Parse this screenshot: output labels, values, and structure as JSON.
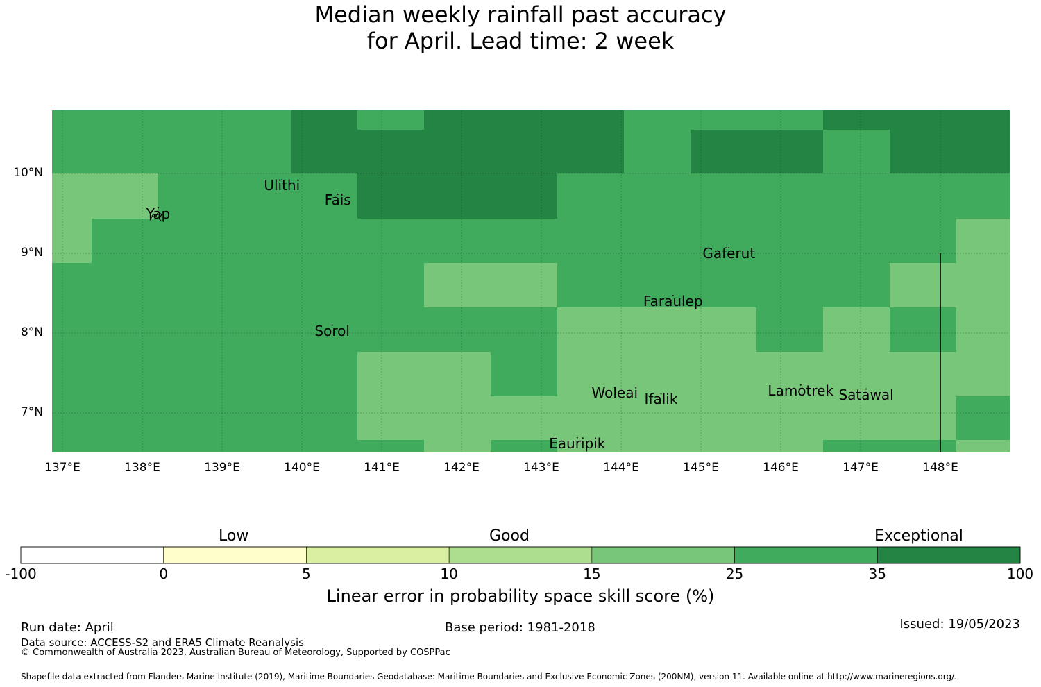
{
  "title": {
    "line1": "Median weekly rainfall past accuracy",
    "line2": "for April. Lead time: 2 week"
  },
  "map": {
    "lon_range": [
      137,
      149
    ],
    "lat_range": [
      6.5,
      10.8
    ],
    "lon_ticks": [
      137,
      138,
      139,
      140,
      141,
      142,
      143,
      144,
      145,
      146,
      147,
      148
    ],
    "lon_tick_labels": [
      "137°E",
      "138°E",
      "139°E",
      "140°E",
      "141°E",
      "142°E",
      "143°E",
      "144°E",
      "145°E",
      "146°E",
      "147°E",
      "148°E"
    ],
    "lat_ticks": [
      10,
      9,
      8,
      7
    ],
    "lat_tick_labels": [
      "10°N",
      "9°N",
      "8°N",
      "7°N"
    ],
    "grid": true,
    "place_labels": [
      {
        "name": "Ulithi",
        "lon": 139.75,
        "lat": 9.85
      },
      {
        "name": "Fais",
        "lon": 140.45,
        "lat": 9.67
      },
      {
        "name": "Yap",
        "lon": 138.2,
        "lat": 9.5
      },
      {
        "name": "Gaferut",
        "lon": 145.35,
        "lat": 9.0
      },
      {
        "name": "Faraulep",
        "lon": 144.65,
        "lat": 8.4
      },
      {
        "name": "Sorol",
        "lon": 140.38,
        "lat": 8.03
      },
      {
        "name": "Woleai",
        "lon": 143.92,
        "lat": 7.25
      },
      {
        "name": "Ifalik",
        "lon": 144.5,
        "lat": 7.17
      },
      {
        "name": "Lamotrek",
        "lon": 146.25,
        "lat": 7.28
      },
      {
        "name": "Satawal",
        "lon": 147.07,
        "lat": 7.23
      },
      {
        "name": "Eauripik",
        "lon": 143.45,
        "lat": 6.62
      }
    ],
    "boundary_line": {
      "lon": 148.0,
      "lat_from": 6.5,
      "lat_to": 9.0
    }
  },
  "legend": {
    "category_labels": [
      "Low",
      "Good",
      "Exceptional"
    ],
    "boundaries": [
      "-100",
      "0",
      "5",
      "10",
      "15",
      "25",
      "35",
      "100"
    ],
    "colors": [
      "#ffffff",
      "#ffffcc",
      "#d9f0a3",
      "#addd8e",
      "#78c679",
      "#41ab5d",
      "#238443"
    ],
    "axis_label": "Linear error in probability space skill score (%)"
  },
  "footer": {
    "run_date": "Run date: April",
    "base_period": "Base period: 1981-2018",
    "issued": "Issued: 19/05/2023",
    "data_source": "Data source: ACCESS-S2 and ERA5 Climate Reanalysis",
    "copyright": "© Commonwealth of Australia 2023, Australian Bureau of Meteorology, Supported by COSPPac",
    "shapefile_note": "Shapefile data extracted from Flanders Marine Institute (2019), Maritime Boundaries Geodatabase: Maritime Boundaries and Exclusive Economic Zones (200NM), version 11. Available online at http://www.marineregions.org/."
  }
}
